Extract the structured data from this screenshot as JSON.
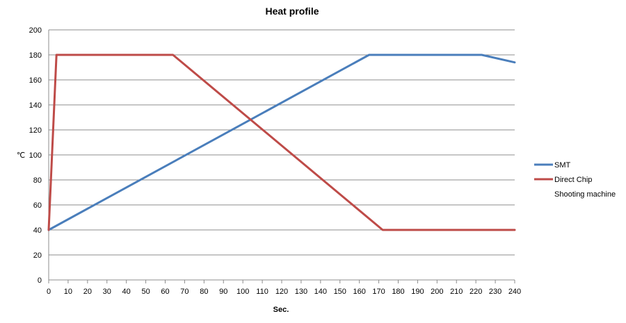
{
  "chart_data": {
    "type": "line",
    "title": "Heat profile",
    "xlabel": "Sec.",
    "ylabel": "℃",
    "xlim": [
      0,
      240
    ],
    "ylim": [
      0,
      200
    ],
    "xticks": [
      0,
      10,
      20,
      30,
      40,
      50,
      60,
      70,
      80,
      90,
      100,
      110,
      120,
      130,
      140,
      150,
      160,
      170,
      180,
      190,
      200,
      210,
      220,
      230,
      240
    ],
    "yticks": [
      0,
      20,
      40,
      60,
      80,
      100,
      120,
      140,
      160,
      180,
      200
    ],
    "grid": "horizontal",
    "legend_position": "right",
    "series": [
      {
        "name": "SMT",
        "color": "#4a7ebb",
        "x": [
          0,
          165,
          223,
          240
        ],
        "y": [
          40,
          180,
          180,
          174
        ]
      },
      {
        "name": "Direct Chip Shooting machine",
        "label_lines": [
          "Direct Chip",
          "Shooting machine"
        ],
        "color": "#be4b48",
        "x": [
          0,
          4,
          64,
          172,
          240
        ],
        "y": [
          40,
          180,
          180,
          40,
          40
        ]
      }
    ]
  }
}
